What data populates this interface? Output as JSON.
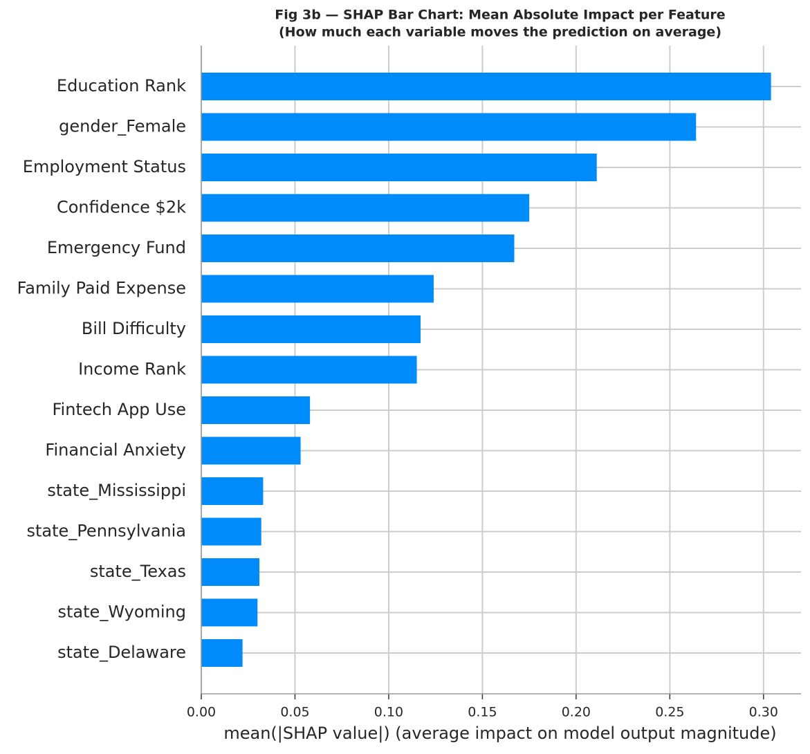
{
  "chart_data": {
    "type": "bar",
    "orientation": "horizontal",
    "title": "Fig 3b — SHAP Bar Chart: Mean Absolute Impact per Feature",
    "subtitle": "(How much each variable moves the prediction on average)",
    "x_label": "mean(|SHAP value|) (average impact on model output magnitude)",
    "categories": [
      "Education Rank",
      "gender_Female",
      "Employment Status",
      "Confidence $2k",
      "Emergency Fund",
      "Family Paid Expense",
      "Bill Difficulty",
      "Income Rank",
      "Fintech App Use",
      "Financial Anxiety",
      "state_Mississippi",
      "state_Pennsylvania",
      "state_Texas",
      "state_Wyoming",
      "state_Delaware"
    ],
    "values": [
      0.304,
      0.264,
      0.211,
      0.175,
      0.167,
      0.124,
      0.117,
      0.115,
      0.058,
      0.053,
      0.033,
      0.032,
      0.031,
      0.03,
      0.022
    ],
    "color": "#008bfb",
    "xlim": [
      0,
      0.32
    ],
    "xticks": [
      {
        "value": 0,
        "label": "0.00"
      },
      {
        "value": 0.05,
        "label": "0.05"
      },
      {
        "value": 0.1,
        "label": "0.10"
      },
      {
        "value": 0.15,
        "label": "0.15"
      },
      {
        "value": 0.2,
        "label": "0.20"
      },
      {
        "value": 0.25,
        "label": "0.25"
      },
      {
        "value": 0.3,
        "label": "0.30"
      }
    ],
    "grid": true
  }
}
